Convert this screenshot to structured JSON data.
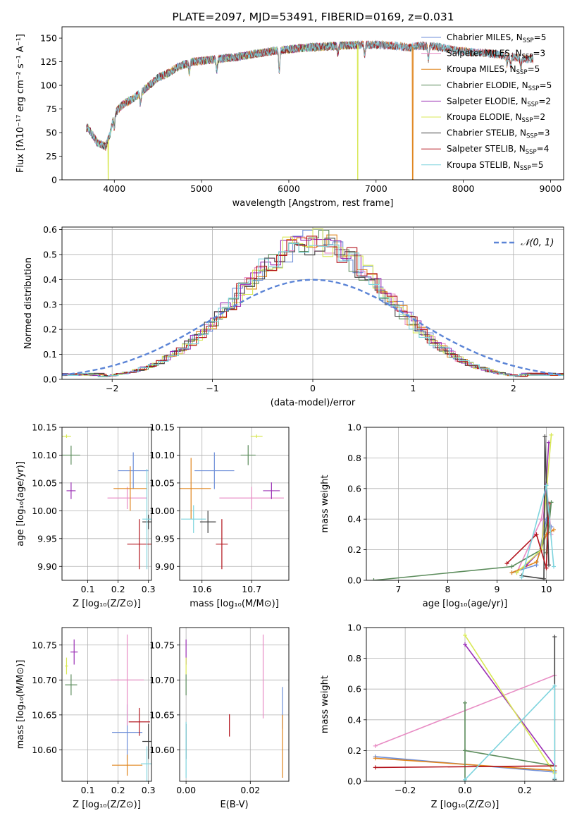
{
  "figure_title": "PLATE=2097, MJD=53491, FIBERID=0169, z=0.031",
  "palette": [
    "#6d8ed8",
    "#e88cc4",
    "#e0851e",
    "#5c8c5c",
    "#9b30b5",
    "#d8e855",
    "#444444",
    "#b3141d",
    "#7ed4de"
  ],
  "chart_data": [
    {
      "panel": "spectrum",
      "type": "line",
      "title": "PLATE=2097, MJD=53491, FIBERID=0169, z=0.031",
      "xlabel": "wavelength [Angstrom, rest frame]",
      "ylabel": "Flux [fλ10⁻¹⁷ erg cm⁻² s⁻¹ A⁻¹]",
      "xlim": [
        3400,
        9150
      ],
      "ylim": [
        0,
        162
      ],
      "xticks": [
        4000,
        5000,
        6000,
        7000,
        8000,
        9000
      ],
      "yticks": [
        0,
        25,
        50,
        75,
        100,
        125,
        150
      ],
      "grid": false,
      "legend_position": "upper right",
      "continuum": [
        [
          3700,
          55
        ],
        [
          3800,
          40
        ],
        [
          3900,
          35
        ],
        [
          3950,
          48
        ],
        [
          4000,
          70
        ],
        [
          4100,
          80
        ],
        [
          4200,
          85
        ],
        [
          4300,
          92
        ],
        [
          4400,
          100
        ],
        [
          4500,
          108
        ],
        [
          4600,
          112
        ],
        [
          4700,
          118
        ],
        [
          4800,
          122
        ],
        [
          4900,
          125
        ],
        [
          5000,
          126
        ],
        [
          5200,
          128
        ],
        [
          5400,
          130
        ],
        [
          5600,
          133
        ],
        [
          5800,
          136
        ],
        [
          6000,
          138
        ],
        [
          6200,
          140
        ],
        [
          6400,
          141
        ],
        [
          6600,
          142
        ],
        [
          6800,
          143
        ],
        [
          7000,
          143
        ],
        [
          7200,
          142
        ],
        [
          7400,
          140
        ],
        [
          7500,
          142
        ],
        [
          7700,
          141
        ],
        [
          7900,
          137
        ],
        [
          8100,
          135
        ],
        [
          8300,
          134
        ],
        [
          8500,
          131
        ],
        [
          8700,
          128
        ]
      ],
      "dips": [
        [
          4000,
          -14
        ],
        [
          4300,
          -12
        ],
        [
          4860,
          -10
        ],
        [
          5175,
          -12
        ],
        [
          5890,
          -22
        ],
        [
          6563,
          -8
        ],
        [
          6870,
          -10
        ],
        [
          7600,
          -14
        ],
        [
          8500,
          -8
        ],
        [
          8542,
          -10
        ],
        [
          8662,
          -10
        ]
      ],
      "drops": [
        {
          "series": "Kroupa ELODIE, N_SSP=2",
          "x": 3930
        },
        {
          "series": "Kroupa ELODIE, N_SSP=2",
          "x": 6790
        },
        {
          "series": "Kroupa MILES, N_SSP=5",
          "x": 7420
        }
      ],
      "series": [
        {
          "name": "Chabrier MILES, N",
          "sub": "SSP",
          "suffix": "=5",
          "color": "#6d8ed8",
          "xmax": 8800
        },
        {
          "name": "Salpeter MILES, N",
          "sub": "SSP",
          "suffix": "=3",
          "color": "#e88cc4",
          "xmax": 8800
        },
        {
          "name": "Kroupa MILES, N",
          "sub": "SSP",
          "suffix": "=5",
          "color": "#e0851e",
          "xmax": 8800
        },
        {
          "name": "Chabrier ELODIE, N",
          "sub": "SSP",
          "suffix": "=5",
          "color": "#5c8c5c",
          "xmax": 6800
        },
        {
          "name": "Salpeter ELODIE, N",
          "sub": "SSP",
          "suffix": "=2",
          "color": "#9b30b5",
          "xmax": 6800
        },
        {
          "name": "Kroupa ELODIE, N",
          "sub": "SSP",
          "suffix": "=2",
          "color": "#d8e855",
          "xmax": 6800
        },
        {
          "name": "Chabrier STELIB, N",
          "sub": "SSP",
          "suffix": "=3",
          "color": "#444444",
          "xmax": 8800
        },
        {
          "name": "Salpeter STELIB, N",
          "sub": "SSP",
          "suffix": "=4",
          "color": "#b3141d",
          "xmax": 8800
        },
        {
          "name": "Kroupa STELIB, N",
          "sub": "SSP",
          "suffix": "=5",
          "color": "#7ed4de",
          "xmax": 8800
        }
      ]
    },
    {
      "panel": "residual-histogram",
      "type": "step",
      "xlabel": "(data-model)/error",
      "ylabel": "Normed distribution",
      "xlim": [
        -2.5,
        2.5
      ],
      "ylim": [
        0,
        0.61
      ],
      "xticks": [
        -2,
        -1,
        0,
        1,
        2
      ],
      "yticks": [
        0.0,
        0.1,
        0.2,
        0.3,
        0.4,
        0.5,
        0.6
      ],
      "grid": true,
      "legend_position": "upper right",
      "gaussian_label": "𝒩(0, 1)",
      "gaussian_color": "#5b84d6",
      "bin_width": 0.1,
      "amplitude": 0.55,
      "sigma": 0.75
    },
    {
      "panel": "Z-age",
      "type": "errorbar",
      "xlabel": "Z [log₁₀(Z/Z⊙)]",
      "ylabel": "age  [log₁₀(age/yr)]",
      "xlim": [
        0.015,
        0.31
      ],
      "ylim": [
        9.875,
        10.15
      ],
      "xticks": [
        0.1,
        0.2,
        0.3
      ],
      "yticks": [
        9.9,
        9.95,
        10.0,
        10.05,
        10.1,
        10.15
      ],
      "grid": true,
      "points": [
        {
          "series": 0,
          "x": 0.25,
          "y": 10.072,
          "xerr": 0.05,
          "yerr": 0.033
        },
        {
          "series": 1,
          "x": 0.23,
          "y": 10.023,
          "xerr": 0.065,
          "yerr": 0.02
        },
        {
          "series": 2,
          "x": 0.24,
          "y": 10.04,
          "xerr": 0.055,
          "yerr": 0.04
        },
        {
          "series": 3,
          "x": 0.045,
          "y": 10.1,
          "xerr": 0.03,
          "yerr": 0.017
        },
        {
          "series": 4,
          "x": 0.045,
          "y": 10.036,
          "xerr": 0.015,
          "yerr": 0.015
        },
        {
          "series": 5,
          "x": 0.03,
          "y": 10.134,
          "xerr": 0.015,
          "yerr": 0.003
        },
        {
          "series": 6,
          "x": 0.3,
          "y": 9.98,
          "xerr": 0.02,
          "yerr": 0.013
        },
        {
          "series": 7,
          "x": 0.27,
          "y": 9.94,
          "xerr": 0.04,
          "yerr": 0.045
        },
        {
          "series": 8,
          "x": 0.295,
          "y": 9.985,
          "xerr": 0.015,
          "yerr": 0.09
        }
      ]
    },
    {
      "panel": "mass-age",
      "type": "errorbar",
      "xlabel": "mass [log₁₀(M/M⊙)]",
      "ylabel": "",
      "xlim": [
        0.555,
        0.775
      ],
      "xlim_labelled": [
        10.555,
        10.775
      ],
      "ylim": [
        9.875,
        10.15
      ],
      "xticks": [
        10.6,
        10.7
      ],
      "yticks": [
        9.9,
        9.95,
        10.0,
        10.05,
        10.1,
        10.15
      ],
      "grid": true,
      "points": [
        {
          "series": 0,
          "x": 10.625,
          "y": 10.072,
          "xerr": 0.04,
          "yerr": 0.033
        },
        {
          "series": 1,
          "x": 10.7,
          "y": 10.023,
          "xerr": 0.065,
          "yerr": 0.02
        },
        {
          "series": 2,
          "x": 10.578,
          "y": 10.04,
          "xerr": 0.04,
          "yerr": 0.055
        },
        {
          "series": 3,
          "x": 10.693,
          "y": 10.1,
          "xerr": 0.015,
          "yerr": 0.018
        },
        {
          "series": 4,
          "x": 10.74,
          "y": 10.036,
          "xerr": 0.017,
          "yerr": 0.015
        },
        {
          "series": 5,
          "x": 10.71,
          "y": 10.134,
          "xerr": 0.012,
          "yerr": 0.003
        },
        {
          "series": 6,
          "x": 10.612,
          "y": 9.98,
          "xerr": 0.016,
          "yerr": 0.02
        },
        {
          "series": 7,
          "x": 10.64,
          "y": 9.94,
          "xerr": 0.012,
          "yerr": 0.045
        },
        {
          "series": 8,
          "x": 10.583,
          "y": 9.985,
          "xerr": 0.025,
          "yerr": 0.025
        }
      ]
    },
    {
      "panel": "age-weight",
      "type": "line",
      "xlabel": "age  [log₁₀(age/yr)]",
      "ylabel": "mass weight",
      "xlim": [
        6.35,
        10.35
      ],
      "ylim": [
        0,
        1
      ],
      "xticks": [
        7,
        8,
        9,
        10
      ],
      "yticks": [
        0.0,
        0.2,
        0.4,
        0.6,
        0.8,
        1.0
      ],
      "grid": true,
      "lines": [
        {
          "series": 0,
          "points": [
            [
              9.3,
              0.05
            ],
            [
              9.8,
              0.1
            ],
            [
              10.0,
              0.4
            ],
            [
              10.1,
              0.35
            ]
          ]
        },
        {
          "series": 1,
          "points": [
            [
              9.4,
              0.05
            ],
            [
              9.9,
              0.4
            ],
            [
              10.0,
              0.63
            ],
            [
              10.1,
              0.3
            ]
          ]
        },
        {
          "series": 2,
          "points": [
            [
              9.3,
              0.05
            ],
            [
              9.8,
              0.12
            ],
            [
              10.0,
              0.3
            ],
            [
              10.15,
              0.33
            ]
          ]
        },
        {
          "series": 3,
          "points": [
            [
              6.5,
              0.0
            ],
            [
              9.3,
              0.09
            ],
            [
              9.9,
              0.2
            ],
            [
              10.1,
              0.51
            ],
            [
              10.0,
              0.18
            ]
          ]
        },
        {
          "series": 4,
          "points": [
            [
              9.6,
              0.1
            ],
            [
              9.9,
              0.2
            ],
            [
              10.05,
              0.9
            ]
          ]
        },
        {
          "series": 5,
          "points": [
            [
              9.4,
              0.05
            ],
            [
              9.9,
              0.2
            ],
            [
              10.1,
              0.95
            ]
          ]
        },
        {
          "series": 6,
          "points": [
            [
              9.5,
              0.03
            ],
            [
              9.95,
              0.01
            ],
            [
              9.97,
              0.94
            ],
            [
              10.05,
              0.1
            ]
          ]
        },
        {
          "series": 7,
          "points": [
            [
              9.2,
              0.11
            ],
            [
              9.8,
              0.3
            ],
            [
              10.0,
              0.08
            ],
            [
              10.05,
              0.5
            ]
          ]
        },
        {
          "series": 8,
          "points": [
            [
              9.5,
              0.02
            ],
            [
              10.0,
              0.62
            ],
            [
              10.15,
              0.09
            ]
          ]
        }
      ]
    },
    {
      "panel": "Z-mass",
      "type": "errorbar",
      "xlabel": "Z [log₁₀(Z/Z⊙)]",
      "ylabel": "mass [log₁₀(M/M⊙)]",
      "xlim": [
        0.015,
        0.31
      ],
      "ylim": [
        10.555,
        10.775
      ],
      "xticks": [
        0.1,
        0.2,
        0.3
      ],
      "yticks": [
        10.6,
        10.65,
        10.7,
        10.75
      ],
      "grid": true,
      "points": [
        {
          "series": 0,
          "x": 0.23,
          "y": 10.625,
          "xerr": 0.05,
          "yerr": 0.04
        },
        {
          "series": 1,
          "x": 0.23,
          "y": 10.7,
          "xerr": 0.055,
          "yerr": 0.065
        },
        {
          "series": 2,
          "x": 0.23,
          "y": 10.578,
          "xerr": 0.05,
          "yerr": 0.015
        },
        {
          "series": 3,
          "x": 0.045,
          "y": 10.693,
          "xerr": 0.02,
          "yerr": 0.015
        },
        {
          "series": 4,
          "x": 0.055,
          "y": 10.74,
          "xerr": 0.012,
          "yerr": 0.018
        },
        {
          "series": 5,
          "x": 0.03,
          "y": 10.72,
          "xerr": 0.005,
          "yerr": 0.012
        },
        {
          "series": 6,
          "x": 0.3,
          "y": 10.612,
          "xerr": 0.02,
          "yerr": 0.025
        },
        {
          "series": 7,
          "x": 0.27,
          "y": 10.64,
          "xerr": 0.035,
          "yerr": 0.02
        },
        {
          "series": 8,
          "x": 0.295,
          "y": 10.58,
          "xerr": 0.02,
          "yerr": 0.025
        }
      ]
    },
    {
      "panel": "EBV-mass",
      "type": "errorbar",
      "xlabel": "E(B-V)",
      "ylabel": "",
      "xlim": [
        -0.002,
        0.032
      ],
      "ylim": [
        10.555,
        10.775
      ],
      "xticks": [
        0.0,
        0.02
      ],
      "yticks": [
        10.6,
        10.65,
        10.7,
        10.75
      ],
      "grid": true,
      "points": [
        {
          "series": 0,
          "x": 0.03,
          "y": 10.66,
          "xerr": 0,
          "yerr": 0.03
        },
        {
          "series": 1,
          "x": 0.024,
          "y": 10.705,
          "xerr": 0,
          "yerr": 0.06
        },
        {
          "series": 2,
          "x": 0.03,
          "y": 10.605,
          "xerr": 0,
          "yerr": 0.045
        },
        {
          "series": 3,
          "x": 0.0,
          "y": 10.693,
          "xerr": 0,
          "yerr": 0.015
        },
        {
          "series": 4,
          "x": 0.0,
          "y": 10.74,
          "xerr": 0,
          "yerr": 0.018
        },
        {
          "series": 5,
          "x": 0.0,
          "y": 10.72,
          "xerr": 0,
          "yerr": 0.012
        },
        {
          "series": 6,
          "x": 0.0,
          "y": 10.612,
          "xerr": 0,
          "yerr": 0.025
        },
        {
          "series": 7,
          "x": 0.0135,
          "y": 10.635,
          "xerr": 0,
          "yerr": 0.016
        },
        {
          "series": 8,
          "x": 0.0,
          "y": 10.6,
          "xerr": 0,
          "yerr": 0.04
        }
      ]
    },
    {
      "panel": "Z-weight",
      "type": "line",
      "xlabel": "Z [log₁₀(Z/Z⊙)]",
      "ylabel": "mass weight",
      "xlim": [
        -0.33,
        0.33
      ],
      "ylim": [
        0,
        1
      ],
      "xticks": [
        -0.2,
        0.0,
        0.2
      ],
      "yticks": [
        0.0,
        0.2,
        0.4,
        0.6,
        0.8,
        1.0
      ],
      "grid": true,
      "lines": [
        {
          "series": 0,
          "points": [
            [
              -0.3,
              0.16
            ],
            [
              0.3,
              0.06
            ]
          ]
        },
        {
          "series": 1,
          "points": [
            [
              -0.3,
              0.23
            ],
            [
              0.3,
              0.69
            ]
          ]
        },
        {
          "series": 2,
          "points": [
            [
              -0.3,
              0.15
            ],
            [
              0.3,
              0.07
            ]
          ]
        },
        {
          "series": 3,
          "points": [
            [
              0.0,
              0.0
            ],
            [
              0.0,
              0.51
            ],
            [
              0.0,
              0.2
            ],
            [
              0.3,
              0.1
            ]
          ]
        },
        {
          "series": 4,
          "points": [
            [
              0.0,
              0.89
            ],
            [
              0.3,
              0.1
            ]
          ]
        },
        {
          "series": 5,
          "points": [
            [
              0.0,
              0.95
            ],
            [
              0.3,
              0.05
            ]
          ]
        },
        {
          "series": 6,
          "points": [
            [
              0.3,
              0.01
            ],
            [
              0.3,
              0.94
            ]
          ]
        },
        {
          "series": 7,
          "points": [
            [
              -0.3,
              0.09
            ],
            [
              0.3,
              0.1
            ]
          ]
        },
        {
          "series": 8,
          "points": [
            [
              0.0,
              0.01
            ],
            [
              0.3,
              0.62
            ],
            [
              0.3,
              0.02
            ]
          ]
        }
      ]
    }
  ]
}
